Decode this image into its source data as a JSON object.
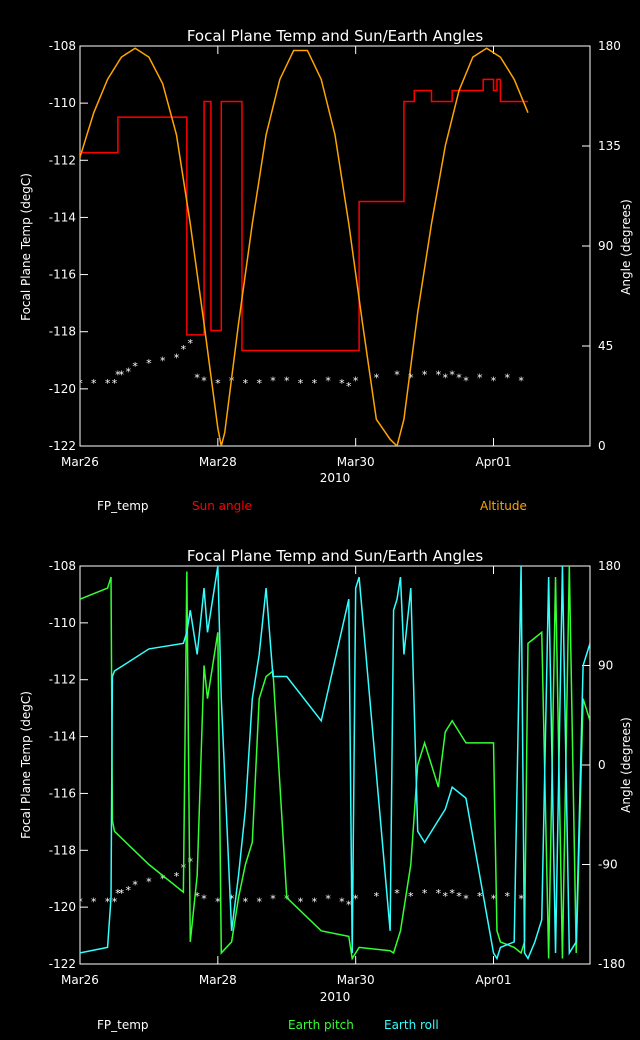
{
  "chart_data": [
    {
      "type": "line",
      "title": "Focal Plane Temp and Sun/Earth Angles",
      "xlabel": "2010",
      "ylabel": "Focal Plane Temp (degC)",
      "y2label": "Angle (degrees)",
      "xlim": [
        0,
        7.4
      ],
      "ylim": [
        -122,
        -108
      ],
      "y2lim": [
        0,
        180
      ],
      "x_ticks": [
        {
          "v": 0,
          "label": "Mar26"
        },
        {
          "v": 2,
          "label": "Mar28"
        },
        {
          "v": 4,
          "label": "Mar30"
        },
        {
          "v": 6,
          "label": "Apr01"
        }
      ],
      "y_ticks": [
        -122,
        -120,
        -118,
        -116,
        -114,
        -112,
        -110,
        -108
      ],
      "y2_ticks": [
        0,
        45,
        90,
        135,
        180
      ],
      "legend": [
        {
          "label": "FP_temp",
          "color": "#ffffff"
        },
        {
          "label": "Sun angle",
          "color": "#ff0000"
        },
        {
          "label": "Altitude",
          "color": "#ffa500"
        }
      ],
      "series": [
        {
          "name": "FP_temp",
          "axis": "left",
          "style": "points",
          "color": "#ffffff",
          "x": [
            0.0,
            0.2,
            0.4,
            0.5,
            0.55,
            0.6,
            0.7,
            0.8,
            1.0,
            1.2,
            1.4,
            1.5,
            1.6,
            1.7,
            1.8,
            2.0,
            2.2,
            2.4,
            2.6,
            2.8,
            3.0,
            3.2,
            3.4,
            3.6,
            3.8,
            3.9,
            4.0,
            4.3,
            4.6,
            4.8,
            5.0,
            5.2,
            5.3,
            5.4,
            5.5,
            5.6,
            5.8,
            6.0,
            6.2,
            6.4
          ],
          "y": [
            -119.8,
            -119.8,
            -119.8,
            -119.8,
            -119.5,
            -119.5,
            -119.4,
            -119.2,
            -119.1,
            -119.0,
            -118.9,
            -118.6,
            -118.4,
            -119.6,
            -119.7,
            -119.8,
            -119.7,
            -119.8,
            -119.8,
            -119.7,
            -119.7,
            -119.8,
            -119.8,
            -119.7,
            -119.8,
            -119.9,
            -119.7,
            -119.6,
            -119.5,
            -119.6,
            -119.5,
            -119.5,
            -119.6,
            -119.5,
            -119.6,
            -119.7,
            -119.6,
            -119.7,
            -119.6,
            -119.7
          ]
        },
        {
          "name": "Sun angle",
          "axis": "right",
          "style": "step",
          "color": "#ff0000",
          "x": [
            0.0,
            0.5,
            0.55,
            1.5,
            1.55,
            1.75,
            1.8,
            1.85,
            1.9,
            2.0,
            2.05,
            2.1,
            2.35,
            2.6,
            3.5,
            3.6,
            3.9,
            4.0,
            4.05,
            4.1,
            4.5,
            4.6,
            4.7,
            4.8,
            4.85,
            5.0,
            5.1,
            5.15,
            5.4,
            5.5,
            5.6,
            5.8,
            5.85,
            6.0,
            6.05,
            6.1,
            6.2,
            6.5
          ],
          "y": [
            132,
            132,
            148,
            148,
            50,
            50,
            155,
            155,
            52,
            52,
            155,
            155,
            43,
            43,
            43,
            43,
            43,
            43,
            110,
            110,
            110,
            110,
            155,
            155,
            160,
            160,
            155,
            155,
            160,
            160,
            160,
            160,
            165,
            160,
            165,
            155,
            155,
            155
          ]
        },
        {
          "name": "Altitude",
          "axis": "right",
          "style": "line",
          "color": "#ffa500",
          "x": [
            0.0,
            0.2,
            0.4,
            0.6,
            0.8,
            1.0,
            1.2,
            1.4,
            1.6,
            1.8,
            2.0,
            2.05,
            2.1,
            2.3,
            2.5,
            2.7,
            2.9,
            3.1,
            3.3,
            3.5,
            3.7,
            3.9,
            4.1,
            4.3,
            4.5,
            4.6,
            4.7,
            4.9,
            5.1,
            5.3,
            5.5,
            5.7,
            5.9,
            6.1,
            6.3,
            6.5
          ],
          "y": [
            130,
            150,
            165,
            175,
            179,
            175,
            163,
            140,
            100,
            55,
            8,
            0,
            6,
            55,
            100,
            140,
            165,
            178,
            178,
            165,
            140,
            100,
            55,
            12,
            3,
            0,
            12,
            60,
            100,
            135,
            160,
            175,
            179,
            175,
            165,
            150
          ]
        }
      ]
    },
    {
      "type": "line",
      "title": "Focal Plane Temp and Sun/Earth Angles",
      "xlabel": "2010",
      "ylabel": "Focal Plane Temp (degC)",
      "y2label": "Angle (degrees)",
      "xlim": [
        0,
        7.4
      ],
      "ylim": [
        -122,
        -108
      ],
      "y2lim": [
        -180,
        180
      ],
      "x_ticks": [
        {
          "v": 0,
          "label": "Mar26"
        },
        {
          "v": 2,
          "label": "Mar28"
        },
        {
          "v": 4,
          "label": "Mar30"
        },
        {
          "v": 6,
          "label": "Apr01"
        }
      ],
      "y_ticks": [
        -122,
        -120,
        -118,
        -116,
        -114,
        -112,
        -110,
        -108
      ],
      "y2_ticks": [
        -180,
        -90,
        0,
        90,
        180
      ],
      "legend": [
        {
          "label": "FP_temp",
          "color": "#ffffff"
        },
        {
          "label": "Earth pitch",
          "color": "#33ff33"
        },
        {
          "label": "Earth roll",
          "color": "#33ffff"
        }
      ],
      "series": [
        {
          "name": "FP_temp",
          "axis": "left",
          "style": "points",
          "color": "#ffffff",
          "x": [
            0.0,
            0.2,
            0.4,
            0.5,
            0.55,
            0.6,
            0.7,
            0.8,
            1.0,
            1.2,
            1.4,
            1.5,
            1.6,
            1.7,
            1.8,
            2.0,
            2.2,
            2.4,
            2.6,
            2.8,
            3.0,
            3.2,
            3.4,
            3.6,
            3.8,
            3.9,
            4.0,
            4.3,
            4.6,
            4.8,
            5.0,
            5.2,
            5.3,
            5.4,
            5.5,
            5.6,
            5.8,
            6.0,
            6.2,
            6.4
          ],
          "y": [
            -119.8,
            -119.8,
            -119.8,
            -119.8,
            -119.5,
            -119.5,
            -119.4,
            -119.2,
            -119.1,
            -119.0,
            -118.9,
            -118.6,
            -118.4,
            -119.6,
            -119.7,
            -119.8,
            -119.7,
            -119.8,
            -119.8,
            -119.7,
            -119.7,
            -119.8,
            -119.8,
            -119.7,
            -119.8,
            -119.9,
            -119.7,
            -119.6,
            -119.5,
            -119.6,
            -119.5,
            -119.5,
            -119.6,
            -119.5,
            -119.6,
            -119.7,
            -119.6,
            -119.7,
            -119.6,
            -119.7
          ]
        },
        {
          "name": "Earth pitch",
          "axis": "right",
          "style": "line",
          "color": "#33ff33",
          "x": [
            0.0,
            0.4,
            0.45,
            0.47,
            0.5,
            1.0,
            1.5,
            1.55,
            1.6,
            1.7,
            1.8,
            1.85,
            2.0,
            2.05,
            2.2,
            2.3,
            2.4,
            2.5,
            2.6,
            2.7,
            2.8,
            3.0,
            3.5,
            3.9,
            3.95,
            4.0,
            4.05,
            4.5,
            4.55,
            4.6,
            4.65,
            4.7,
            4.8,
            4.9,
            5.0,
            5.2,
            5.3,
            5.4,
            5.6,
            6.0,
            6.05,
            6.1,
            6.3,
            6.4,
            6.45,
            6.5,
            6.6,
            6.7,
            6.8,
            6.9,
            7.0,
            7.1,
            7.2,
            7.3,
            7.4
          ],
          "y": [
            150,
            160,
            170,
            -50,
            -60,
            -90,
            -115,
            175,
            -160,
            -100,
            90,
            60,
            120,
            -170,
            -160,
            -120,
            -90,
            -70,
            60,
            80,
            85,
            -120,
            -150,
            -155,
            -175,
            -170,
            -165,
            -168,
            -170,
            -160,
            -150,
            -130,
            -90,
            0,
            20,
            -20,
            30,
            40,
            20,
            20,
            -150,
            -160,
            -165,
            -170,
            -160,
            110,
            115,
            120,
            -175,
            170,
            -175,
            180,
            -170,
            60,
            40
          ]
        },
        {
          "name": "Earth roll",
          "axis": "right",
          "style": "line",
          "color": "#33ffff",
          "x": [
            0.0,
            0.4,
            0.45,
            0.47,
            0.5,
            1.0,
            1.5,
            1.55,
            1.6,
            1.7,
            1.8,
            1.85,
            2.0,
            2.05,
            2.2,
            2.3,
            2.4,
            2.5,
            2.6,
            2.7,
            2.8,
            3.0,
            3.5,
            3.9,
            3.95,
            4.0,
            4.05,
            4.5,
            4.55,
            4.6,
            4.65,
            4.7,
            4.8,
            4.9,
            5.0,
            5.2,
            5.3,
            5.4,
            5.6,
            6.0,
            6.05,
            6.1,
            6.3,
            6.4,
            6.45,
            6.5,
            6.6,
            6.7,
            6.8,
            6.9,
            7.0,
            7.1,
            7.2,
            7.3,
            7.4
          ],
          "y": [
            -170,
            -165,
            -120,
            80,
            85,
            105,
            110,
            120,
            140,
            100,
            160,
            120,
            180,
            60,
            -150,
            -100,
            -40,
            60,
            100,
            160,
            80,
            80,
            40,
            150,
            -170,
            160,
            170,
            -150,
            140,
            150,
            170,
            100,
            160,
            -60,
            -70,
            -50,
            -40,
            -20,
            -30,
            -170,
            -175,
            -165,
            -160,
            180,
            -170,
            -175,
            -160,
            -140,
            170,
            -170,
            180,
            -170,
            -160,
            90,
            110
          ]
        }
      ]
    }
  ]
}
